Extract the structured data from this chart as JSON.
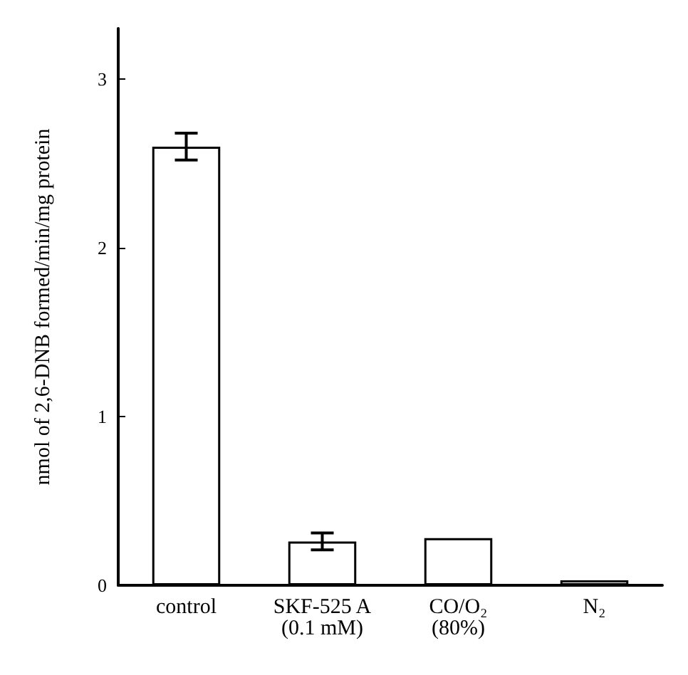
{
  "chart_data": {
    "type": "bar",
    "ylabel": "nmol of 2,6-DNB formed/min/mg protein",
    "categories": [
      "control",
      "SKF-525 A\n(0.1 mM)",
      "CO/O₂\n(80%)",
      "N₂"
    ],
    "values": [
      2.6,
      0.26,
      0.28,
      0.03
    ],
    "errors": [
      0.08,
      0.05,
      null,
      null
    ],
    "color": "#ffffff",
    "ylim": [
      0,
      3.3
    ],
    "yticks": [
      0,
      1,
      2,
      3
    ],
    "grid": false
  }
}
